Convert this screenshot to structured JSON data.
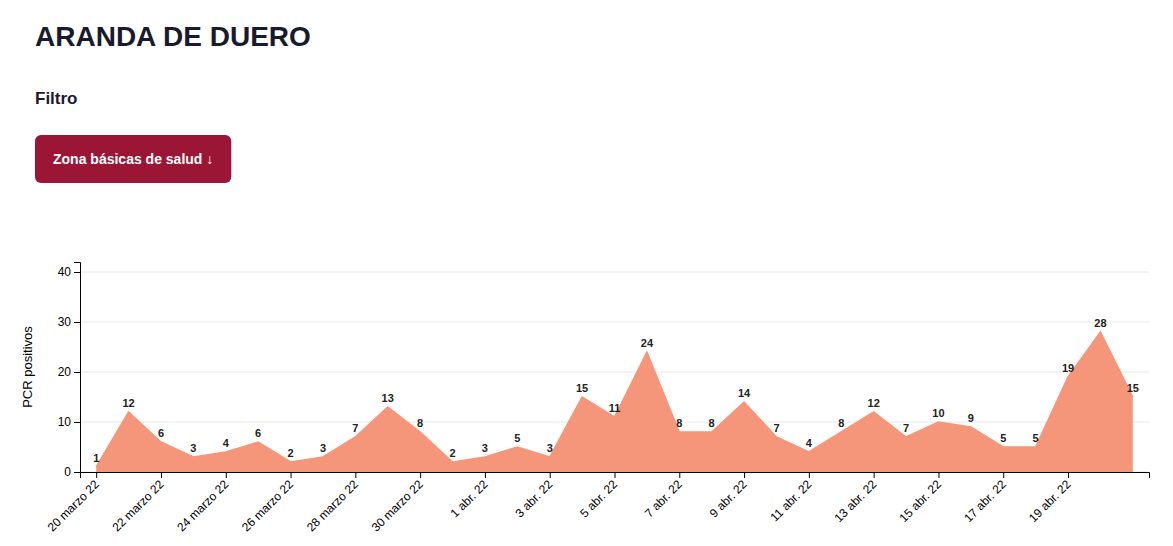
{
  "chart_data": {
    "type": "area",
    "title": "ARANDA DE DUERO",
    "subtitle": "Filtro",
    "annotations": [
      "Zona básicas de salud  ↓"
    ],
    "y_label": "PCR positivos",
    "categories": [
      "20 marzo 22",
      null,
      "22 marzo 22",
      null,
      "24 marzo 22",
      null,
      "26 marzo 22",
      null,
      "28 marzo 22",
      null,
      "30 marzo 22",
      null,
      "1 abr. 22",
      null,
      "3 abr. 22",
      null,
      "5 abr. 22",
      null,
      "7 abr. 22",
      null,
      "9 abr. 22",
      null,
      "11 abr. 22",
      null,
      "13 abr. 22",
      null,
      "15 abr. 22",
      null,
      "17 abr. 22",
      null,
      "19 abr. 22",
      null,
      null
    ],
    "values": [
      1,
      12,
      6,
      3,
      4,
      6,
      2,
      3,
      7,
      13,
      8,
      2,
      3,
      5,
      3,
      15,
      11,
      24,
      8,
      8,
      14,
      7,
      4,
      8,
      12,
      7,
      10,
      9,
      5,
      5,
      19,
      28,
      15
    ],
    "color": "#f5967b",
    "ylim": [
      0,
      42
    ],
    "yticks": [
      0,
      10,
      20,
      30,
      40
    ],
    "grid": true,
    "data_labels": true
  }
}
